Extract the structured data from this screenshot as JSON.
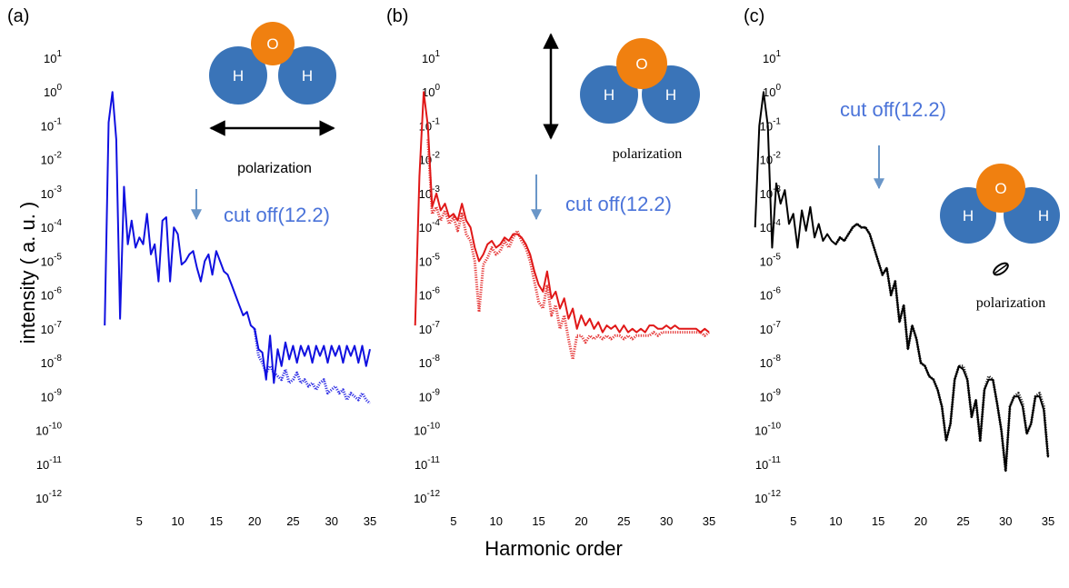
{
  "figure": {
    "y_axis_label": "intensity ( a. u. )",
    "x_axis_label": "Harmonic order"
  },
  "annotations": {
    "cutoff_text": "cut off(12.2)",
    "polarization_text": "polarization",
    "atom_o": "O",
    "atom_h": "H"
  },
  "colors": {
    "panel_a": "#1010e0",
    "panel_b": "#e01818",
    "panel_c": "#000000",
    "arrow_annotation": "#6a96c8",
    "hydrogen": "#3a74b8",
    "oxygen": "#f08010"
  },
  "chart_data": [
    {
      "type": "line",
      "panel_label": "(a)",
      "y_scale": "log10",
      "ylim": [
        1e-12,
        10
      ],
      "y_tick_exponents": [
        1,
        0,
        -1,
        -2,
        -3,
        -4,
        -5,
        -6,
        -7,
        -8,
        -9,
        -10,
        -11,
        -12
      ],
      "x_ticks": [
        5,
        10,
        15,
        20,
        25,
        30,
        35
      ],
      "xlim": [
        0,
        35
      ],
      "cutoff_marker": 12.2,
      "series": [
        {
          "style": "solid",
          "x": [
            0.5,
            1,
            1.5,
            2,
            2.5,
            3,
            3.5,
            4,
            4.5,
            5,
            5.5,
            6,
            6.5,
            7,
            7.5,
            8,
            8.5,
            9,
            9.5,
            10,
            10.5,
            11,
            11.5,
            12,
            12.5,
            13,
            13.5,
            14,
            14.5,
            15,
            15.5,
            16,
            16.5,
            17,
            17.5,
            18,
            18.5,
            19,
            19.5,
            20,
            20.5,
            21,
            21.5,
            22,
            22.5,
            23,
            23.5,
            24,
            24.5,
            25,
            25.5,
            26,
            26.5,
            27,
            27.5,
            28,
            28.5,
            29,
            29.5,
            30,
            30.5,
            31,
            31.5,
            32,
            32.5,
            33,
            33.5,
            34,
            34.5,
            35
          ],
          "y": [
            -6.9,
            -0.9,
            0,
            -1.4,
            -6.7,
            -2.8,
            -4.5,
            -3.8,
            -4.6,
            -4.3,
            -4.5,
            -3.6,
            -4.8,
            -4.5,
            -5.6,
            -3.8,
            -3.7,
            -5.6,
            -4,
            -4.2,
            -5.1,
            -5,
            -4.8,
            -4.7,
            -5.2,
            -5.6,
            -5,
            -4.8,
            -5.4,
            -4.7,
            -5,
            -5.3,
            -5.4,
            -5.7,
            -6,
            -6.3,
            -6.6,
            -6.5,
            -6.9,
            -7,
            -7.6,
            -7.7,
            -8.5,
            -7.2,
            -8.6,
            -7.6,
            -8.1,
            -7.4,
            -7.9,
            -7.5,
            -8,
            -7.5,
            -7.8,
            -7.5,
            -8,
            -7.5,
            -7.8,
            -7.5,
            -8,
            -7.5,
            -7.8,
            -7.5,
            -8,
            -7.5,
            -7.8,
            -7.5,
            -8,
            -7.5,
            -8.1,
            -7.6
          ]
        },
        {
          "style": "dotted",
          "x": [
            20,
            20.5,
            21,
            21.5,
            22,
            22.5,
            23,
            23.5,
            24,
            24.5,
            25,
            25.5,
            26,
            26.5,
            27,
            27.5,
            28,
            28.5,
            29,
            29.5,
            30,
            30.5,
            31,
            31.5,
            32,
            32.5,
            33,
            33.5,
            34,
            34.5,
            35
          ],
          "y": [
            -7,
            -7.8,
            -8,
            -8.3,
            -8.1,
            -8.3,
            -8.4,
            -8.5,
            -8.2,
            -8.6,
            -8.5,
            -8.3,
            -8.6,
            -8.5,
            -8.7,
            -8.6,
            -8.8,
            -8.6,
            -8.5,
            -8.9,
            -8.8,
            -8.7,
            -8.9,
            -8.8,
            -9.1,
            -8.9,
            -9,
            -9.1,
            -8.9,
            -9.1,
            -9.2
          ]
        }
      ]
    },
    {
      "type": "line",
      "panel_label": "(b)",
      "y_scale": "log10",
      "ylim": [
        1e-12,
        10
      ],
      "y_tick_exponents": [
        1,
        0,
        -1,
        -2,
        -3,
        -4,
        -5,
        -6,
        -7,
        -8,
        -9,
        -10,
        -11,
        -12
      ],
      "x_ticks": [
        5,
        10,
        15,
        20,
        25,
        30,
        35
      ],
      "xlim": [
        0,
        35
      ],
      "cutoff_marker": 12.2,
      "series": [
        {
          "style": "solid",
          "x": [
            0.5,
            1,
            1.5,
            2,
            2.5,
            3,
            3.5,
            4,
            4.5,
            5,
            5.5,
            6,
            6.5,
            7,
            7.5,
            8,
            8.5,
            9,
            9.5,
            10,
            10.5,
            11,
            11.5,
            12,
            12.5,
            13,
            13.5,
            14,
            14.5,
            15,
            15.5,
            16,
            16.5,
            17,
            17.5,
            18,
            18.5,
            19,
            19.5,
            20,
            20.5,
            21,
            21.5,
            22,
            22.5,
            23,
            23.5,
            24,
            24.5,
            25,
            25.5,
            26,
            26.5,
            27,
            27.5,
            28,
            28.5,
            29,
            29.5,
            30,
            30.5,
            31,
            31.5,
            32,
            32.5,
            33,
            33.5,
            34,
            34.5,
            35
          ],
          "y": [
            -6.9,
            -2.5,
            0,
            -1,
            -3.4,
            -3,
            -3.5,
            -3.3,
            -3.7,
            -3.6,
            -3.8,
            -3.3,
            -3.8,
            -4,
            -4.6,
            -5,
            -4.8,
            -4.5,
            -4.4,
            -4.6,
            -4.5,
            -4.3,
            -4.4,
            -4.2,
            -4.2,
            -4.3,
            -4.5,
            -4.8,
            -5.3,
            -5.7,
            -5.9,
            -5.3,
            -6.1,
            -5.9,
            -6.4,
            -6.1,
            -6.7,
            -6.4,
            -7,
            -6.6,
            -6.9,
            -6.7,
            -7,
            -6.8,
            -7.1,
            -6.9,
            -7,
            -6.9,
            -7.1,
            -6.9,
            -7.1,
            -7,
            -7.1,
            -7,
            -7.1,
            -6.9,
            -6.9,
            -7,
            -7,
            -6.9,
            -7,
            -6.9,
            -7,
            -7,
            -7,
            -7,
            -7,
            -7.1,
            -7,
            -7.1
          ]
        },
        {
          "style": "dotted",
          "x": [
            2,
            2.5,
            3,
            3.5,
            4,
            4.5,
            5,
            5.5,
            6,
            6.5,
            7,
            7.5,
            8,
            8.5,
            9,
            9.5,
            10,
            10.5,
            11,
            11.5,
            12,
            12.5,
            13,
            13.5,
            14,
            14.5,
            15,
            15.5,
            16,
            16.5,
            17,
            17.5,
            18,
            18.5,
            19,
            19.5,
            20,
            20.5,
            21,
            21.5,
            22,
            22.5,
            23,
            23.5,
            24,
            24.5,
            25,
            25.5,
            26,
            26.5,
            27,
            27.5,
            28,
            28.5,
            29,
            29.5,
            30,
            30.5,
            31,
            31.5,
            32,
            32.5,
            33,
            33.5,
            34,
            34.5,
            35
          ],
          "y": [
            -1.4,
            -3.6,
            -3.4,
            -3.8,
            -3.5,
            -3.9,
            -3.7,
            -4.1,
            -3.6,
            -4.2,
            -4.4,
            -5,
            -6.5,
            -5.1,
            -4.9,
            -4.6,
            -4.8,
            -4.7,
            -4.4,
            -4.6,
            -4.3,
            -4.1,
            -4.4,
            -4.6,
            -5,
            -5.6,
            -6.2,
            -6.4,
            -5.7,
            -6.6,
            -6.3,
            -7,
            -6.6,
            -7.3,
            -7.9,
            -7.2,
            -7.2,
            -7.4,
            -7.2,
            -7.3,
            -7.2,
            -7.3,
            -7.2,
            -7.3,
            -7.2,
            -7.2,
            -7.3,
            -7.2,
            -7.3,
            -7.2,
            -7.2,
            -7.2,
            -7.2,
            -7.1,
            -7.2,
            -7.1,
            -7.1,
            -7.1,
            -7.1,
            -7.1,
            -7.1,
            -7.1,
            -7.1,
            -7.1,
            -7.1,
            -7.2,
            -7.1
          ]
        }
      ]
    },
    {
      "type": "line",
      "panel_label": "(c)",
      "y_scale": "log10",
      "ylim": [
        1e-12,
        10
      ],
      "y_tick_exponents": [
        1,
        0,
        -1,
        -2,
        -3,
        -4,
        -5,
        -6,
        -7,
        -8,
        -9,
        -10,
        -11,
        -12
      ],
      "x_ticks": [
        5,
        10,
        15,
        20,
        25,
        30,
        35
      ],
      "xlim": [
        0,
        35
      ],
      "cutoff_marker": 12.2,
      "series": [
        {
          "style": "solid",
          "x": [
            0.5,
            1,
            1.5,
            2,
            2.5,
            3,
            3.5,
            4,
            4.5,
            5,
            5.5,
            6,
            6.5,
            7,
            7.5,
            8,
            8.5,
            9,
            9.5,
            10,
            10.5,
            11,
            11.5,
            12,
            12.5,
            13,
            13.5,
            14,
            14.5,
            15,
            15.5,
            16,
            16.5,
            17,
            17.5,
            18,
            18.5,
            19,
            19.5,
            20,
            20.5,
            21,
            21.5,
            22,
            22.5,
            23,
            23.5,
            24,
            24.5,
            25,
            25.5,
            26,
            26.5,
            27,
            27.5,
            28,
            28.5,
            29,
            29.5,
            30,
            30.5,
            31,
            31.5,
            32,
            32.5,
            33,
            33.5,
            34,
            34.5,
            35
          ],
          "y": [
            -4,
            -1,
            0,
            -1,
            -4.6,
            -2.7,
            -3.3,
            -2.9,
            -3.9,
            -3.6,
            -4.6,
            -3.5,
            -4.1,
            -3.4,
            -4.3,
            -3.9,
            -4.4,
            -4.2,
            -4.4,
            -4.5,
            -4.3,
            -4.4,
            -4.2,
            -4,
            -3.9,
            -4,
            -4,
            -4.2,
            -4.6,
            -5,
            -5.4,
            -5.2,
            -6,
            -5.6,
            -6.8,
            -6.3,
            -7.6,
            -6.9,
            -7.3,
            -8,
            -8.1,
            -8.4,
            -8.5,
            -8.8,
            -9.3,
            -10.3,
            -9.8,
            -8.5,
            -8.1,
            -8.2,
            -8.5,
            -9.6,
            -9.1,
            -10.3,
            -8.8,
            -8.5,
            -8.5,
            -9.2,
            -10,
            -11.2,
            -9.3,
            -9,
            -9,
            -9.3,
            -10.1,
            -9.8,
            -9,
            -9,
            -9.4,
            -10.8
          ]
        },
        {
          "style": "dotted",
          "x": [
            10,
            10.5,
            11,
            11.5,
            12,
            12.5,
            13,
            13.5,
            14,
            14.5,
            15,
            15.5,
            16,
            16.5,
            17,
            17.5,
            18,
            18.5,
            19,
            19.5,
            20,
            20.5,
            21,
            21.5,
            22,
            22.5,
            23,
            23.5,
            24,
            24.5,
            25,
            25.5,
            26,
            26.5,
            27,
            27.5,
            28,
            28.5,
            29,
            29.5,
            30,
            30.5,
            31,
            31.5,
            32,
            32.5,
            33,
            33.5,
            34,
            34.5,
            35
          ],
          "y": [
            -4.5,
            -4.3,
            -4.4,
            -4.2,
            -4,
            -3.9,
            -4,
            -4,
            -4.2,
            -4.6,
            -5,
            -5.4,
            -5.2,
            -6,
            -5.6,
            -6.8,
            -6.3,
            -7.6,
            -6.9,
            -7.3,
            -8,
            -8.1,
            -8.4,
            -8.5,
            -8.8,
            -9.3,
            -10.3,
            -9.8,
            -8.5,
            -8.1,
            -8.1,
            -8.5,
            -9.6,
            -9.1,
            -10.3,
            -8.8,
            -8.4,
            -8.5,
            -9.2,
            -10,
            -11.2,
            -9.3,
            -9,
            -8.9,
            -9.2,
            -10.1,
            -9.8,
            -9,
            -8.9,
            -9.3,
            -10.8
          ]
        }
      ]
    }
  ]
}
